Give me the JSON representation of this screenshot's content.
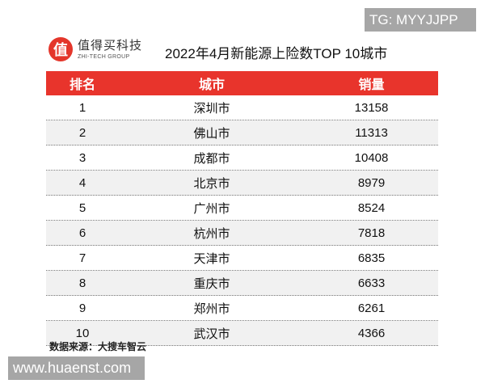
{
  "watermark_top": "TG: MYYJJPP",
  "logo": {
    "badge": "值",
    "name_cn": "值得买科技",
    "name_en": "ZHI-TECH GROUP"
  },
  "title": "2022年4月新能源上险数TOP 10城市",
  "table": {
    "headers": [
      "排名",
      "城市",
      "销量"
    ],
    "rows": [
      {
        "rank": "1",
        "city": "深圳市",
        "sales": "13158"
      },
      {
        "rank": "2",
        "city": "佛山市",
        "sales": "11313"
      },
      {
        "rank": "3",
        "city": "成都市",
        "sales": "10408"
      },
      {
        "rank": "4",
        "city": "北京市",
        "sales": "8979"
      },
      {
        "rank": "5",
        "city": "广州市",
        "sales": "8524"
      },
      {
        "rank": "6",
        "city": "杭州市",
        "sales": "7818"
      },
      {
        "rank": "7",
        "city": "天津市",
        "sales": "6835"
      },
      {
        "rank": "8",
        "city": "重庆市",
        "sales": "6633"
      },
      {
        "rank": "9",
        "city": "郑州市",
        "sales": "6261"
      },
      {
        "rank": "10",
        "city": "武汉市",
        "sales": "4366"
      }
    ]
  },
  "source": "数据来源：大搜车智云",
  "watermark_bottom": "www.huaenst.com",
  "colors": {
    "header_bg": "#e8342c",
    "logo_red": "#e4362b",
    "alt_row": "#f1f1f1",
    "watermark_bg": "#a6a6a6"
  },
  "chart_data": {
    "type": "table",
    "title": "2022年4月新能源上险数TOP 10城市",
    "columns": [
      "排名",
      "城市",
      "销量"
    ],
    "categories": [
      "深圳市",
      "佛山市",
      "成都市",
      "北京市",
      "广州市",
      "杭州市",
      "天津市",
      "重庆市",
      "郑州市",
      "武汉市"
    ],
    "values": [
      13158,
      11313,
      10408,
      8979,
      8524,
      7818,
      6835,
      6633,
      6261,
      4366
    ],
    "source": "数据来源：大搜车智云"
  }
}
